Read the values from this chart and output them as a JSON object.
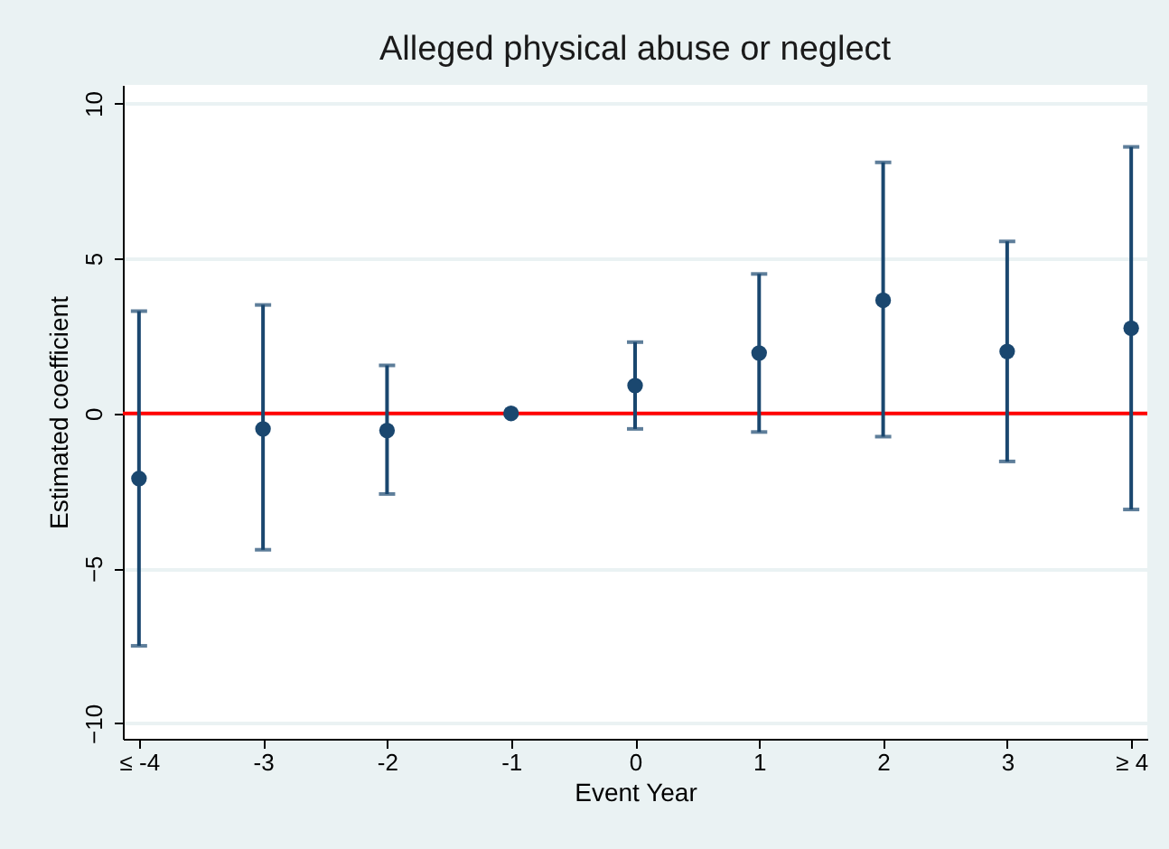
{
  "chart_data": {
    "type": "scatter",
    "title": "Alleged physical abuse or neglect",
    "xlabel": "Event Year",
    "ylabel": "Estimated coefficient",
    "categories": [
      "≤ -4",
      "-3",
      "-2",
      "-1",
      "0",
      "1",
      "2",
      "3",
      "≥ 4"
    ],
    "series": [
      {
        "color": "#1a476f",
        "values": [
          -2.1,
          -0.5,
          -0.55,
          0,
          0.9,
          1.95,
          3.65,
          2.0,
          2.75
        ],
        "errors": [
          [
            -7.5,
            3.3
          ],
          [
            -4.4,
            3.5
          ],
          [
            -2.6,
            1.55
          ],
          null,
          [
            -0.5,
            2.3
          ],
          [
            -0.6,
            4.5
          ],
          [
            -0.75,
            8.1
          ],
          [
            -1.55,
            5.55
          ],
          [
            -3.1,
            8.6
          ]
        ]
      }
    ],
    "ylim": [
      -10.5,
      10.6
    ],
    "yticks": [
      -10,
      -5,
      0,
      5,
      10
    ],
    "grid": "y",
    "marker": "circle",
    "ref_lines": [
      {
        "axis": "y",
        "value": 0,
        "color": "#ff0000"
      }
    ]
  }
}
